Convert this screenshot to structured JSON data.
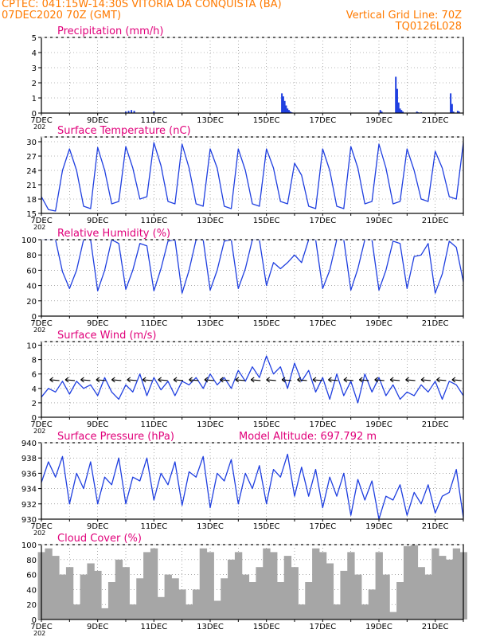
{
  "header": {
    "line1": "CPTEC:   041:15W-14:30S   VITORIA DA CONQUISTA (BA)",
    "line2": "07DEC2020 70Z (GMT)",
    "grid_note": "Vertical Grid Line: 70Z",
    "code": "TQ0126L028"
  },
  "x_axis": {
    "day_labels": [
      "7DEC",
      "9DEC",
      "11DEC",
      "13DEC",
      "15DEC",
      "17DEC",
      "19DEC",
      "21DEC"
    ],
    "year_stub": "202",
    "start_day": 7,
    "end_day": 22
  },
  "colors": {
    "title": "#e0007a",
    "header": "#ff7a00",
    "line": "#1f3fe0",
    "cloud": "#a6a6a6"
  },
  "chart_data": [
    {
      "type": "bar",
      "title": "Precipitation (mm/h)",
      "ylim": [
        0,
        5
      ],
      "yticks": [
        0,
        1,
        2,
        3,
        4,
        5
      ],
      "x": [
        10.0,
        10.1,
        10.2,
        10.3,
        11.0,
        15.55,
        15.6,
        15.65,
        15.7,
        15.75,
        15.8,
        15.85,
        15.9,
        19.05,
        19.1,
        19.6,
        19.65,
        19.7,
        19.75,
        19.8,
        19.85,
        20.35,
        20.4,
        20.5,
        21.55,
        21.6,
        21.65,
        21.8,
        21.85
      ],
      "values": [
        0.1,
        0.15,
        0.2,
        0.15,
        0.1,
        1.3,
        1.1,
        0.8,
        0.5,
        0.3,
        0.2,
        0.1,
        0.05,
        0.2,
        0.1,
        2.4,
        1.6,
        0.7,
        0.3,
        0.2,
        0.1,
        0.1,
        0.05,
        0.05,
        1.3,
        0.6,
        0.1,
        0.15,
        0.1
      ]
    },
    {
      "type": "line",
      "title": "Surface Temperature (nC)",
      "ylim": [
        15,
        31
      ],
      "yticks": [
        15,
        18,
        21,
        24,
        27,
        30
      ],
      "x": [
        7.0,
        7.25,
        7.5,
        7.75,
        8.0,
        8.25,
        8.5,
        8.75,
        9.0,
        9.25,
        9.5,
        9.75,
        10.0,
        10.25,
        10.5,
        10.75,
        11.0,
        11.25,
        11.5,
        11.75,
        12.0,
        12.25,
        12.5,
        12.75,
        13.0,
        13.25,
        13.5,
        13.75,
        14.0,
        14.25,
        14.5,
        14.75,
        15.0,
        15.25,
        15.5,
        15.75,
        16.0,
        16.25,
        16.5,
        16.75,
        17.0,
        17.25,
        17.5,
        17.75,
        18.0,
        18.25,
        18.5,
        18.75,
        19.0,
        19.25,
        19.5,
        19.75,
        20.0,
        20.25,
        20.5,
        20.75,
        21.0,
        21.25,
        21.5,
        21.75,
        22.0
      ],
      "values": [
        18.5,
        15.8,
        15.5,
        24.0,
        28.5,
        24.0,
        16.5,
        16.0,
        28.8,
        24.0,
        17.0,
        17.5,
        29.0,
        24.5,
        18.0,
        18.5,
        29.8,
        25.0,
        17.5,
        17.0,
        29.5,
        24.5,
        17.0,
        16.5,
        28.5,
        24.5,
        16.5,
        16.0,
        28.5,
        24.0,
        17.0,
        16.5,
        28.5,
        24.5,
        17.5,
        17.0,
        25.5,
        23.0,
        16.5,
        16.0,
        28.5,
        24.0,
        16.5,
        16.0,
        29.0,
        24.5,
        17.0,
        17.5,
        29.5,
        24.5,
        17.0,
        17.5,
        28.5,
        24.0,
        18.0,
        17.5,
        28.0,
        24.5,
        18.5,
        18.0,
        29.8
      ]
    },
    {
      "type": "line",
      "title": "Relative Humidity (%)",
      "ylim": [
        0,
        100
      ],
      "yticks": [
        0,
        20,
        40,
        60,
        80,
        100
      ],
      "x": [
        7.0,
        7.25,
        7.5,
        7.75,
        8.0,
        8.25,
        8.5,
        8.75,
        9.0,
        9.25,
        9.5,
        9.75,
        10.0,
        10.25,
        10.5,
        10.75,
        11.0,
        11.25,
        11.5,
        11.75,
        12.0,
        12.25,
        12.5,
        12.75,
        13.0,
        13.25,
        13.5,
        13.75,
        14.0,
        14.25,
        14.5,
        14.75,
        15.0,
        15.25,
        15.5,
        15.75,
        16.0,
        16.25,
        16.5,
        16.75,
        17.0,
        17.25,
        17.5,
        17.75,
        18.0,
        18.25,
        18.5,
        18.75,
        19.0,
        19.25,
        19.5,
        19.75,
        20.0,
        20.25,
        20.5,
        20.75,
        21.0,
        21.25,
        21.5,
        21.75,
        22.0
      ],
      "values": [
        100,
        100,
        100,
        58,
        36,
        60,
        100,
        100,
        33,
        60,
        100,
        95,
        35,
        60,
        95,
        92,
        33,
        62,
        98,
        100,
        30,
        60,
        100,
        100,
        34,
        60,
        98,
        100,
        36,
        62,
        100,
        100,
        40,
        70,
        62,
        70,
        80,
        70,
        100,
        100,
        36,
        60,
        100,
        100,
        34,
        62,
        100,
        100,
        34,
        60,
        98,
        95,
        36,
        78,
        80,
        95,
        30,
        55,
        98,
        90,
        45
      ]
    },
    {
      "type": "line",
      "title": "Surface Wind (m/s)",
      "ylim": [
        0,
        10.5
      ],
      "yticks": [
        0,
        2,
        4,
        6,
        8,
        10
      ],
      "x": [
        7.0,
        7.25,
        7.5,
        7.75,
        8.0,
        8.25,
        8.5,
        8.75,
        9.0,
        9.25,
        9.5,
        9.75,
        10.0,
        10.25,
        10.5,
        10.75,
        11.0,
        11.25,
        11.5,
        11.75,
        12.0,
        12.25,
        12.5,
        12.75,
        13.0,
        13.25,
        13.5,
        13.75,
        14.0,
        14.25,
        14.5,
        14.75,
        15.0,
        15.25,
        15.5,
        15.75,
        16.0,
        16.25,
        16.5,
        16.75,
        17.0,
        17.25,
        17.5,
        17.75,
        18.0,
        18.25,
        18.5,
        18.75,
        19.0,
        19.25,
        19.5,
        19.75,
        20.0,
        20.25,
        20.5,
        20.75,
        21.0,
        21.25,
        21.5,
        21.75,
        22.0
      ],
      "values": [
        2.8,
        4.0,
        3.5,
        5.0,
        3.2,
        5.0,
        4.0,
        4.5,
        3.0,
        5.5,
        3.5,
        2.5,
        4.5,
        3.5,
        6.0,
        3.0,
        5.5,
        3.8,
        5.0,
        3.0,
        5.0,
        4.5,
        5.5,
        4.0,
        6.0,
        4.5,
        5.5,
        4.0,
        6.5,
        5.0,
        7.0,
        5.5,
        8.5,
        6.0,
        7.0,
        4.0,
        7.5,
        5.0,
        6.5,
        3.5,
        5.5,
        2.5,
        6.0,
        3.0,
        5.0,
        2.0,
        6.0,
        3.5,
        5.5,
        3.0,
        4.5,
        2.5,
        3.5,
        3.0,
        4.5,
        3.5,
        5.0,
        2.5,
        5.0,
        4.5,
        3.0
      ]
    },
    {
      "type": "line",
      "title": "Surface Pressure (hPa)",
      "annotation": "Model Altitude: 697.792 m",
      "ylim": [
        930,
        940
      ],
      "yticks": [
        930,
        932,
        934,
        936,
        938,
        940
      ],
      "x": [
        7.0,
        7.25,
        7.5,
        7.75,
        8.0,
        8.25,
        8.5,
        8.75,
        9.0,
        9.25,
        9.5,
        9.75,
        10.0,
        10.25,
        10.5,
        10.75,
        11.0,
        11.25,
        11.5,
        11.75,
        12.0,
        12.25,
        12.5,
        12.75,
        13.0,
        13.25,
        13.5,
        13.75,
        14.0,
        14.25,
        14.5,
        14.75,
        15.0,
        15.25,
        15.5,
        15.75,
        16.0,
        16.25,
        16.5,
        16.75,
        17.0,
        17.25,
        17.5,
        17.75,
        18.0,
        18.25,
        18.5,
        18.75,
        19.0,
        19.25,
        19.5,
        19.75,
        20.0,
        20.25,
        20.5,
        20.75,
        21.0,
        21.25,
        21.5,
        21.75,
        22.0
      ],
      "values": [
        934.8,
        937.5,
        935.5,
        938.2,
        932.0,
        936.0,
        934.0,
        937.5,
        932.0,
        935.5,
        934.5,
        938.0,
        932.0,
        935.5,
        935.0,
        938.0,
        932.5,
        936.0,
        934.5,
        937.5,
        931.8,
        936.2,
        935.5,
        938.2,
        931.5,
        936.0,
        935.0,
        937.8,
        932.0,
        936.0,
        934.0,
        937.0,
        932.0,
        936.5,
        935.5,
        938.5,
        933.0,
        936.8,
        933.0,
        936.5,
        931.5,
        935.5,
        933.0,
        936.0,
        930.5,
        935.2,
        932.5,
        935.0,
        930.0,
        933.0,
        932.5,
        934.5,
        930.5,
        933.5,
        932.0,
        934.5,
        930.8,
        933.0,
        933.5,
        936.5,
        930.2
      ]
    },
    {
      "type": "area",
      "title": "Cloud Cover (%)",
      "ylim": [
        0,
        100
      ],
      "yticks": [
        0,
        20,
        40,
        60,
        80,
        100
      ],
      "x": [
        7.0,
        7.25,
        7.5,
        7.75,
        8.0,
        8.25,
        8.5,
        8.75,
        9.0,
        9.25,
        9.5,
        9.75,
        10.0,
        10.25,
        10.5,
        10.75,
        11.0,
        11.25,
        11.5,
        11.75,
        12.0,
        12.25,
        12.5,
        12.75,
        13.0,
        13.25,
        13.5,
        13.75,
        14.0,
        14.25,
        14.5,
        14.75,
        15.0,
        15.25,
        15.5,
        15.75,
        16.0,
        16.25,
        16.5,
        16.75,
        17.0,
        17.25,
        17.5,
        17.75,
        18.0,
        18.25,
        18.5,
        18.75,
        19.0,
        19.25,
        19.5,
        19.75,
        20.0,
        20.25,
        20.5,
        20.75,
        21.0,
        21.25,
        21.5,
        21.75,
        22.0
      ],
      "values": [
        90,
        95,
        85,
        60,
        70,
        20,
        60,
        75,
        65,
        15,
        50,
        80,
        70,
        20,
        55,
        90,
        95,
        30,
        60,
        55,
        40,
        20,
        40,
        95,
        90,
        25,
        55,
        80,
        90,
        60,
        50,
        70,
        95,
        90,
        50,
        85,
        70,
        20,
        50,
        95,
        90,
        75,
        20,
        65,
        90,
        60,
        20,
        40,
        90,
        60,
        10,
        50,
        98,
        100,
        70,
        60,
        95,
        85,
        80,
        95,
        90
      ]
    }
  ]
}
